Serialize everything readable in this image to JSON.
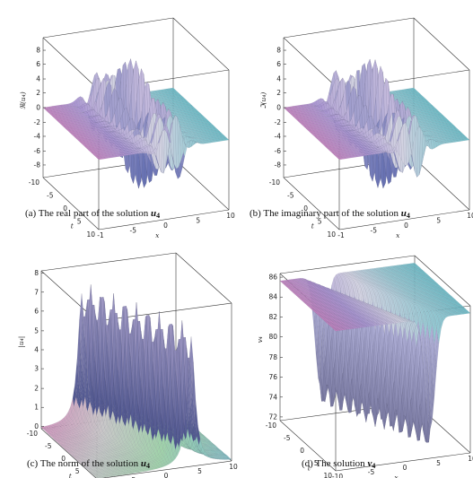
{
  "figures": [
    {
      "key": "a",
      "caption_prefix": "(a)  The real part of the solution ",
      "caption_var": "u",
      "caption_sub": "4",
      "zlabel": "ℜ(u₄)",
      "xlabel": "x",
      "tlabel": "t",
      "zticks": [
        "8",
        "6",
        "4",
        "2",
        "0",
        "-2",
        "-4",
        "-6",
        "-8"
      ],
      "tticks": [
        "-10",
        "-5",
        "0",
        "5",
        "10"
      ],
      "xticks": [
        "10",
        "5",
        "0",
        "-5",
        "-1"
      ]
    },
    {
      "key": "b",
      "caption_prefix": "(b)  The imaginary part of the solution ",
      "caption_var": "u",
      "caption_sub": "4",
      "zlabel": "ℑ(u₄)",
      "xlabel": "x",
      "tlabel": "t",
      "zticks": [
        "8",
        "6",
        "4",
        "2",
        "0",
        "-2",
        "-4",
        "-6",
        "-8"
      ],
      "tticks": [
        "-10",
        "-5",
        "0",
        "5",
        "10"
      ],
      "xticks": [
        "10",
        "5",
        "0",
        "-5",
        "-1"
      ]
    },
    {
      "key": "c",
      "caption_prefix": "(c)  The norm of the solution ",
      "caption_var": "u",
      "caption_sub": "4",
      "zlabel": "|u₄|",
      "xlabel": "x",
      "tlabel": "t",
      "zticks": [
        "8",
        "7",
        "6",
        "5",
        "4",
        "3",
        "2",
        "1",
        "0"
      ],
      "tticks": [
        "-10",
        "-5",
        "0",
        "5",
        "10"
      ],
      "xticks": [
        "10",
        "5",
        "0",
        "-5",
        "-10"
      ]
    },
    {
      "key": "d",
      "caption_prefix": "(d)  The solution ",
      "caption_var": "v",
      "caption_sub": "4",
      "zlabel": "v₄",
      "xlabel": "x",
      "tlabel": "t",
      "zticks": [
        "86",
        "84",
        "82",
        "80",
        "78",
        "76",
        "74",
        "72"
      ],
      "tticks": [
        "-10",
        "-5",
        "0",
        "5",
        "10"
      ],
      "xticks": [
        "10",
        "5",
        "0",
        "-5",
        "-10"
      ]
    }
  ]
}
